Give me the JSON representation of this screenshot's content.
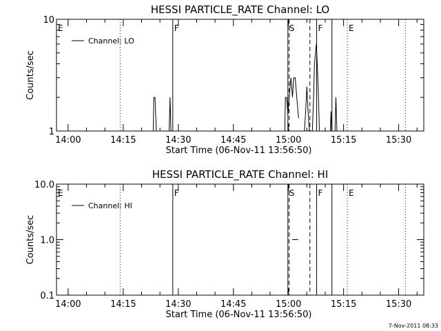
{
  "footer": {
    "timestamp": "7-Nov-2011 08:33"
  },
  "chart_data": [
    {
      "type": "line",
      "title": "HESSI PARTICLE_RATE Channel: LO",
      "xlabel": "Start Time (06-Nov-11 13:56:50)",
      "ylabel": "Counts/sec",
      "y_scale": "log",
      "ylim": [
        1,
        10
      ],
      "y_ticks": [
        {
          "value": 1,
          "label": "1"
        },
        {
          "value": 10,
          "label": "10"
        }
      ],
      "xlim": [
        "13:56:50",
        "15:36:50"
      ],
      "x_ticks": [
        "14:00",
        "14:15",
        "14:30",
        "14:45",
        "15:00",
        "15:15",
        "15:30"
      ],
      "legend": {
        "position": "top-left",
        "entries": [
          "Channel: LO"
        ]
      },
      "grid": false,
      "series": [
        {
          "name": "Channel: LO",
          "segments": [
            [
              [
                "14:23:10",
                1
              ],
              [
                "14:23:20",
                2
              ],
              [
                "14:23:40",
                2
              ],
              [
                "14:24:00",
                1
              ]
            ],
            [
              [
                "14:27:30",
                1
              ],
              [
                "14:27:45",
                2
              ],
              [
                "14:28:00",
                1
              ]
            ],
            [
              [
                "14:59:00",
                1
              ],
              [
                "14:59:10",
                2
              ],
              [
                "14:59:30",
                2
              ],
              [
                "14:59:50",
                1.4
              ],
              [
                "15:00:10",
                2
              ],
              [
                "15:00:40",
                3
              ],
              [
                "15:01:05",
                2
              ],
              [
                "15:01:25",
                3
              ],
              [
                "15:01:50",
                3
              ],
              [
                "15:02:15",
                2
              ],
              [
                "15:02:45",
                1.3
              ]
            ],
            [
              [
                "15:04:20",
                1
              ],
              [
                "15:04:40",
                1.5
              ],
              [
                "15:05:00",
                2.5
              ],
              [
                "15:05:20",
                1.5
              ],
              [
                "15:05:40",
                1
              ]
            ],
            [
              [
                "15:06:30",
                1
              ],
              [
                "15:06:50",
                2
              ],
              [
                "15:07:05",
                4
              ],
              [
                "15:07:20",
                5
              ],
              [
                "15:07:35",
                6
              ],
              [
                "15:07:50",
                4
              ],
              [
                "15:08:10",
                2
              ],
              [
                "15:08:25",
                1
              ]
            ],
            [
              [
                "15:11:25",
                1
              ],
              [
                "15:11:35",
                1.5
              ],
              [
                "15:11:45",
                1
              ]
            ],
            [
              [
                "15:12:40",
                1
              ],
              [
                "15:12:55",
                2
              ],
              [
                "15:13:10",
                1
              ]
            ]
          ]
        }
      ],
      "markers": [
        {
          "label": "E",
          "time": "13:56:50",
          "style": "dotted"
        },
        {
          "label": "",
          "time": "14:14:10",
          "style": "dotted"
        },
        {
          "label": "F",
          "time": "14:28:30",
          "style": "solid"
        },
        {
          "label": "S",
          "time": "14:59:50",
          "style": "solid"
        },
        {
          "label": "",
          "time": "15:00:10",
          "style": "dashed"
        },
        {
          "label": "",
          "time": "15:05:50",
          "style": "dashed"
        },
        {
          "label": "F",
          "time": "15:07:40",
          "style": "solid"
        },
        {
          "label": "",
          "time": "15:11:50",
          "style": "solid"
        },
        {
          "label": "E",
          "time": "15:16:00",
          "style": "dotted"
        },
        {
          "label": "",
          "time": "15:31:50",
          "style": "dotted"
        }
      ]
    },
    {
      "type": "line",
      "title": "HESSI PARTICLE_RATE Channel: HI",
      "xlabel": "Start Time (06-Nov-11 13:56:50)",
      "ylabel": "Counts/sec",
      "y_scale": "log",
      "ylim": [
        0.1,
        10
      ],
      "y_ticks": [
        {
          "value": 0.1,
          "label": "0.1"
        },
        {
          "value": 1,
          "label": "1.0"
        },
        {
          "value": 10,
          "label": "10.0"
        }
      ],
      "xlim": [
        "13:56:50",
        "15:36:50"
      ],
      "x_ticks": [
        "14:00",
        "14:15",
        "14:30",
        "14:45",
        "15:00",
        "15:15",
        "15:30"
      ],
      "legend": {
        "position": "top-left",
        "entries": [
          "Channel: HI"
        ]
      },
      "grid": false,
      "series": [
        {
          "name": "Channel: HI",
          "segments": [
            [
              [
                "15:01:00",
                1
              ],
              [
                "15:02:40",
                1
              ]
            ]
          ]
        }
      ],
      "markers": [
        {
          "label": "E",
          "time": "13:56:50",
          "style": "dotted"
        },
        {
          "label": "",
          "time": "14:14:10",
          "style": "dotted"
        },
        {
          "label": "F",
          "time": "14:28:30",
          "style": "solid"
        },
        {
          "label": "S",
          "time": "14:59:50",
          "style": "solid"
        },
        {
          "label": "",
          "time": "15:00:10",
          "style": "dashed"
        },
        {
          "label": "",
          "time": "15:05:50",
          "style": "dashed"
        },
        {
          "label": "F",
          "time": "15:07:40",
          "style": "solid"
        },
        {
          "label": "",
          "time": "15:11:50",
          "style": "solid"
        },
        {
          "label": "E",
          "time": "15:16:00",
          "style": "dotted"
        },
        {
          "label": "",
          "time": "15:31:50",
          "style": "dotted"
        }
      ]
    }
  ]
}
